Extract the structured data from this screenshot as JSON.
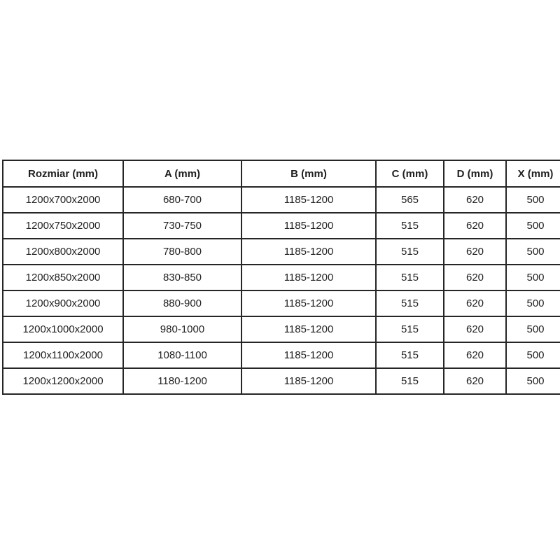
{
  "table": {
    "columns": [
      "Rozmiar (mm)",
      "A (mm)",
      "B (mm)",
      "C (mm)",
      "D (mm)",
      "X (mm)"
    ],
    "rows": [
      [
        "1200x700x2000",
        "680-700",
        "1185-1200",
        "565",
        "620",
        "500"
      ],
      [
        "1200x750x2000",
        "730-750",
        "1185-1200",
        "515",
        "620",
        "500"
      ],
      [
        "1200x800x2000",
        "780-800",
        "1185-1200",
        "515",
        "620",
        "500"
      ],
      [
        "1200x850x2000",
        "830-850",
        "1185-1200",
        "515",
        "620",
        "500"
      ],
      [
        "1200x900x2000",
        "880-900",
        "1185-1200",
        "515",
        "620",
        "500"
      ],
      [
        "1200x1000x2000",
        "980-1000",
        "1185-1200",
        "515",
        "620",
        "500"
      ],
      [
        "1200x1100x2000",
        "1080-1100",
        "1185-1200",
        "515",
        "620",
        "500"
      ],
      [
        "1200x1200x2000",
        "1180-1200",
        "1185-1200",
        "515",
        "620",
        "500"
      ]
    ],
    "border_color": "#262626",
    "text_color": "#1f1f1f",
    "background_color": "#ffffff"
  }
}
